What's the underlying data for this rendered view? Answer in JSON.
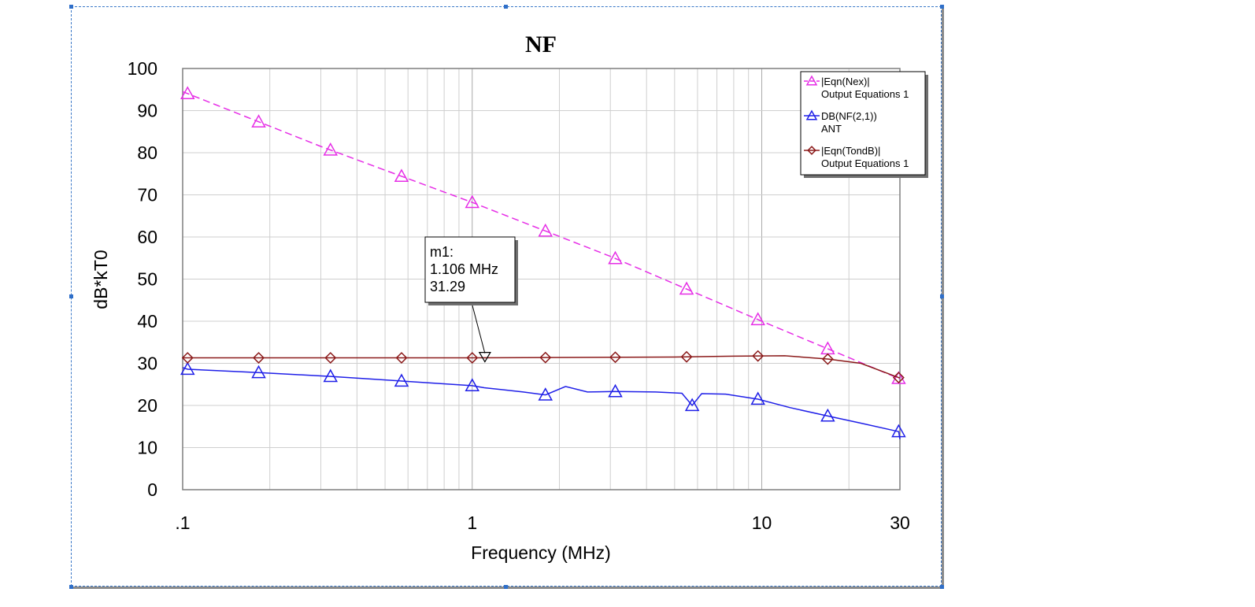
{
  "chart_data": {
    "type": "line",
    "title": "NF",
    "xlabel": "Frequency (MHz)",
    "ylabel": "dB*kT0",
    "xscale": "log",
    "xlim": [
      0.1,
      30
    ],
    "ylim": [
      0,
      100
    ],
    "grid": true,
    "legend_position": "top-right",
    "x_ticks": [
      {
        "value": 0.1,
        "label": ".1"
      },
      {
        "value": 1,
        "label": "1"
      },
      {
        "value": 10,
        "label": "10"
      },
      {
        "value": 30,
        "label": "30"
      }
    ],
    "y_ticks": [
      0,
      10,
      20,
      30,
      40,
      50,
      60,
      70,
      80,
      90,
      100
    ],
    "series": [
      {
        "name": "|Eqn(Nex)|",
        "source": "Output Equations 1",
        "color": "#e62ee6",
        "dash": "dashed",
        "marker": "triangle",
        "x": [
          0.1,
          0.3,
          1,
          3,
          10,
          30
        ],
        "y": [
          94.5,
          81.5,
          68.2,
          55.4,
          40.0,
          26.3
        ],
        "marker_x": [
          0.104,
          0.183,
          0.324,
          0.57,
          1.0,
          1.79,
          3.12,
          5.5,
          9.7,
          16.9,
          29.7
        ]
      },
      {
        "name": "DB(NF(2,1))",
        "source": "ANT",
        "color": "#1f1fe8",
        "dash": "solid",
        "marker": "triangle",
        "x": [
          0.1,
          0.104,
          0.183,
          0.324,
          0.57,
          1.0,
          1.1,
          1.5,
          1.79,
          2.1,
          2.5,
          3.12,
          4.3,
          5.3,
          5.75,
          6.2,
          7.5,
          9.7,
          12.5,
          16.9,
          22,
          29.7,
          30
        ],
        "y": [
          29.0,
          28.6,
          27.8,
          26.9,
          25.8,
          24.7,
          24.2,
          23.2,
          22.5,
          24.5,
          23.2,
          23.3,
          23.2,
          22.9,
          20.0,
          22.8,
          22.7,
          21.5,
          19.5,
          17.5,
          15.8,
          13.8,
          12.0
        ],
        "marker_x": [
          0.104,
          0.183,
          0.324,
          0.57,
          1.0,
          1.79,
          3.12,
          5.75,
          9.7,
          16.9,
          29.7
        ]
      },
      {
        "name": "|Eqn(TondB)|",
        "source": "Output Equations 1",
        "color": "#8b1a1a",
        "dash": "solid",
        "marker": "diamond",
        "x": [
          0.1,
          0.5,
          1,
          5,
          8,
          12,
          17,
          22,
          30
        ],
        "y": [
          31.3,
          31.3,
          31.3,
          31.5,
          31.7,
          31.8,
          31.0,
          30.0,
          26.5
        ],
        "marker_x": [
          0.104,
          0.183,
          0.324,
          0.57,
          1.0,
          1.79,
          3.12,
          5.5,
          9.7,
          16.9,
          29.7
        ]
      }
    ],
    "marker": {
      "name": "m1",
      "x": 1.106,
      "y": 31.29,
      "lines": [
        "m1:",
        "1.106 MHz",
        "31.29"
      ]
    }
  }
}
